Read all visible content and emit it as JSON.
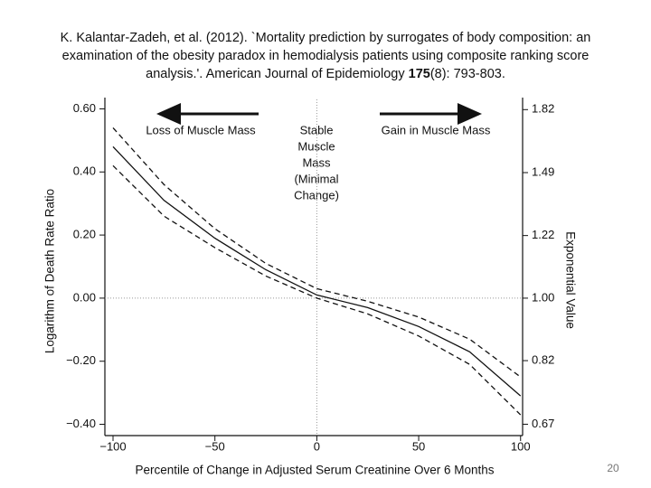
{
  "citation": {
    "lines": [
      "K. Kalantar-Zadeh, et al. (2012). `Mortality prediction by surrogates of body composition: an",
      "examination of the obesity paradox in hemodialysis patients using composite ranking score",
      "analysis.'. American Journal of Epidemiology "
    ],
    "volume": "175",
    "issue_pages": "(8): 793-803."
  },
  "page_number": "20",
  "chart_data": {
    "type": "line",
    "x_label": "Percentile of Change in Adjusted Serum Creatinine Over 6 Months",
    "y_label": "Logarithm of Death Rate Ratio",
    "y2_label": "Exponential Value",
    "annotations": {
      "left": "Loss of Muscle Mass",
      "center": [
        "Stable",
        "Muscle",
        "Mass",
        "(Minimal",
        "Change)"
      ],
      "right": "Gain in Muscle Mass"
    },
    "x": [
      -100,
      -75,
      -50,
      -25,
      0,
      25,
      50,
      75,
      100
    ],
    "series": [
      {
        "color": "#111111",
        "style": "solid",
        "values": [
          0.48,
          0.31,
          0.19,
          0.09,
          0.01,
          -0.03,
          -0.09,
          -0.17,
          -0.31
        ]
      },
      {
        "color": "#111111",
        "style": "dashed",
        "values": [
          0.54,
          0.36,
          0.22,
          0.11,
          0.03,
          -0.01,
          -0.06,
          -0.13,
          -0.25
        ]
      },
      {
        "color": "#111111",
        "style": "dashed",
        "values": [
          0.42,
          0.26,
          0.16,
          0.07,
          0.0,
          -0.05,
          -0.12,
          -0.21,
          -0.37
        ]
      }
    ],
    "xlim": [
      -104,
      101
    ],
    "xticks": [
      {
        "value": -100,
        "label": "−100"
      },
      {
        "value": -50,
        "label": "−50"
      },
      0,
      50,
      100
    ],
    "ylim": [
      -0.43,
      0.63
    ],
    "yticks": [
      {
        "value": 0.6,
        "label": "0.60"
      },
      {
        "value": 0.4,
        "label": "0.40"
      },
      {
        "value": 0.2,
        "label": "0.20"
      },
      {
        "value": 0,
        "label": "0.00"
      },
      {
        "value": -0.2,
        "label": "−0.20"
      },
      {
        "value": -0.4,
        "label": "−0.40"
      }
    ],
    "y2lim": [
      0.65,
      1.88
    ],
    "y2scale": "log",
    "y2ticks": [
      1.82,
      1.49,
      1.22,
      {
        "value": 1,
        "label": "1.00"
      },
      0.82,
      0.67
    ]
  }
}
